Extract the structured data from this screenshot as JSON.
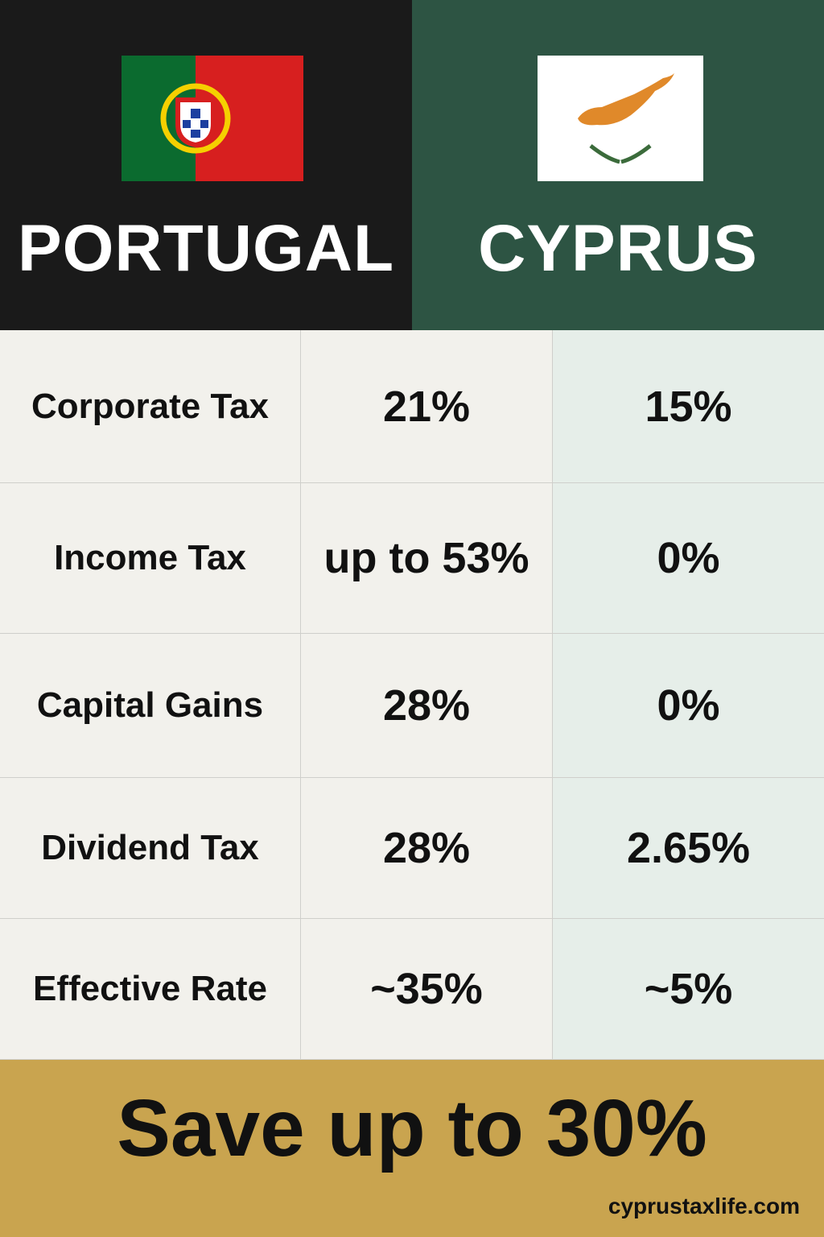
{
  "header": {
    "left": "PORTUGAL",
    "right": "CYPRUS"
  },
  "table": {
    "rows": [
      [
        "Corporate Tax",
        "21%",
        "15%"
      ],
      [
        "Income Tax",
        "up to 53%",
        "0%"
      ],
      [
        "Capital Gains",
        "28%",
        "0%"
      ],
      [
        "Dividend Tax",
        "28%",
        "2.65%"
      ],
      [
        "Effective Rate",
        "~35%",
        "~5%"
      ]
    ]
  },
  "footer": {
    "headline": "Save up to 30%",
    "website": "cyprustaxlife.com"
  }
}
